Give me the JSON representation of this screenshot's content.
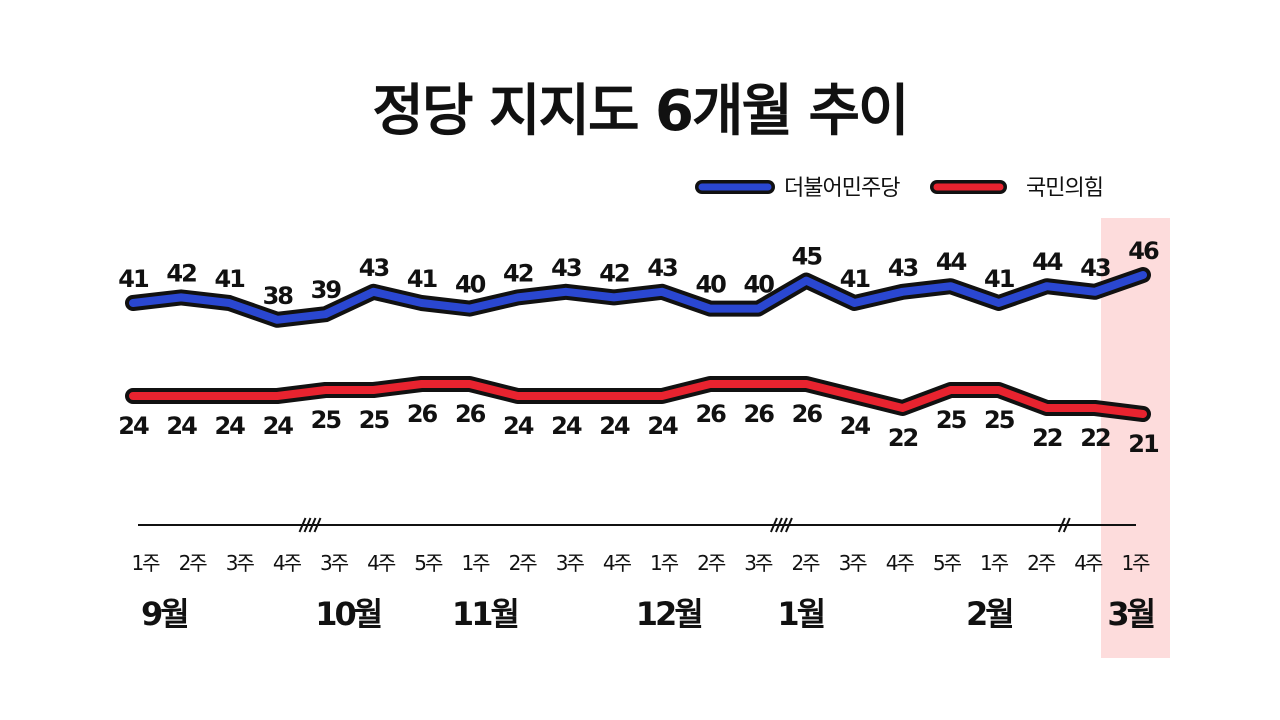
{
  "chart_data": {
    "type": "line",
    "title": "정당 지지도 6개월 추이",
    "x": [
      "1주",
      "2주",
      "3주",
      "4주",
      "3주",
      "4주",
      "5주",
      "1주",
      "2주",
      "3주",
      "4주",
      "1주",
      "2주",
      "3주",
      "2주",
      "3주",
      "4주",
      "5주",
      "1주",
      "2주",
      "4주",
      "1주"
    ],
    "months": [
      {
        "label": "9월",
        "index": 0.4
      },
      {
        "label": "10월",
        "index": 4.3
      },
      {
        "label": "11월",
        "index": 7.2
      },
      {
        "label": "12월",
        "index": 11.1
      },
      {
        "label": "1월",
        "index": 13.9
      },
      {
        "label": "2월",
        "index": 17.9
      },
      {
        "label": "3월",
        "index": 20.9
      }
    ],
    "series": [
      {
        "name": "더불어민주당",
        "color": "#2a47d1",
        "values": [
          41,
          42,
          41,
          38,
          39,
          43,
          41,
          40,
          42,
          43,
          42,
          43,
          40,
          40,
          45,
          41,
          43,
          44,
          41,
          44,
          43,
          46
        ]
      },
      {
        "name": "국민의힘",
        "color": "#e8232f",
        "values": [
          24,
          24,
          24,
          24,
          25,
          25,
          26,
          26,
          24,
          24,
          24,
          24,
          26,
          26,
          26,
          24,
          22,
          25,
          25,
          22,
          22,
          21
        ]
      }
    ],
    "highlight_index": 21,
    "highlight_color": "#fddcdc",
    "axis_breaks_after_index": [
      3,
      13,
      19
    ],
    "legend_placement": "top-right",
    "grid": false
  }
}
